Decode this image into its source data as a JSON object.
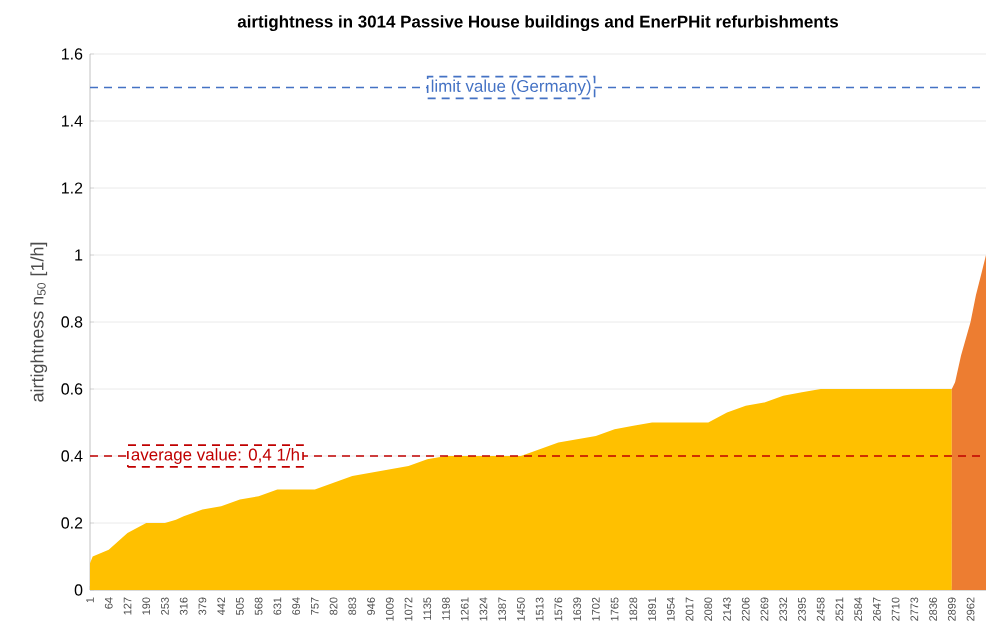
{
  "chart_data": {
    "type": "area",
    "title": "airtightness in 3014 Passive House buildings and EnerPHit refurbishments",
    "ylabel": "airtightness n$_{50}$ [1/h]",
    "series": [
      {
        "color": "#ffc000",
        "x": [
          1,
          10,
          64,
          127,
          190,
          253,
          290,
          316,
          379,
          442,
          505,
          568,
          631,
          757,
          820,
          883,
          946,
          1009,
          1072,
          1135,
          1198,
          1450,
          1513,
          1576,
          1639,
          1702,
          1765,
          1828,
          1891,
          2080,
          2143,
          2206,
          2269,
          2332,
          2395,
          2458,
          2899
        ],
        "values": [
          0.08,
          0.1,
          0.12,
          0.17,
          0.2,
          0.2,
          0.21,
          0.22,
          0.24,
          0.25,
          0.27,
          0.28,
          0.3,
          0.3,
          0.32,
          0.34,
          0.35,
          0.36,
          0.37,
          0.39,
          0.4,
          0.4,
          0.42,
          0.44,
          0.45,
          0.46,
          0.48,
          0.49,
          0.5,
          0.5,
          0.53,
          0.55,
          0.56,
          0.58,
          0.59,
          0.6,
          0.6
        ]
      },
      {
        "color": "#ed7d31",
        "x": [
          2899,
          2910,
          2930,
          2962,
          2980,
          3000,
          3014
        ],
        "values": [
          0.6,
          0.62,
          0.7,
          0.8,
          0.88,
          0.95,
          1.0
        ]
      }
    ],
    "xlim": [
      1,
      3014
    ],
    "xticks": [
      1,
      64,
      127,
      190,
      253,
      316,
      379,
      442,
      505,
      568,
      631,
      694,
      757,
      820,
      883,
      946,
      1009,
      1072,
      1135,
      1198,
      1261,
      1324,
      1387,
      1450,
      1513,
      1576,
      1639,
      1702,
      1765,
      1828,
      1891,
      1954,
      2017,
      2080,
      2143,
      2206,
      2269,
      2332,
      2395,
      2458,
      2521,
      2584,
      2647,
      2710,
      2773,
      2836,
      2899,
      2962
    ],
    "ylim": [
      0,
      1.6
    ],
    "yticks": [
      0,
      0.2,
      0.4,
      0.6,
      0.8,
      1,
      1.2,
      1.4,
      1.6
    ],
    "grid": "y",
    "ref_lines": [
      {
        "axis": "y",
        "value": 1.5,
        "label": "limit value (Germany)",
        "color": "#4472c4",
        "line_style": "dashed"
      },
      {
        "axis": "y",
        "value": 0.4,
        "label": "average value: 0,4 1/h",
        "color": "#c00000",
        "line_style": "dashed"
      }
    ]
  }
}
